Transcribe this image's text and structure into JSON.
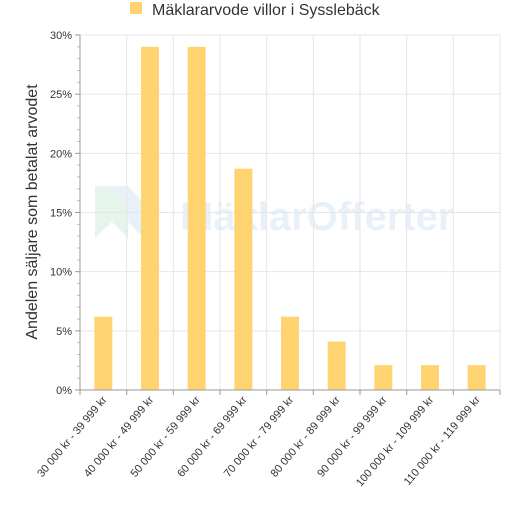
{
  "chart_data": {
    "type": "bar",
    "categories": [
      "30 000 kr - 39 999 kr",
      "40 000 kr - 49 999 kr",
      "50 000 kr - 59 999 kr",
      "60 000 kr - 69 999 kr",
      "70 000 kr - 79 999 kr",
      "80 000 kr - 89 999 kr",
      "90 000 kr - 99 999 kr",
      "100 000 kr - 109 999 kr",
      "110 000 kr - 119 999 kr"
    ],
    "series": [
      {
        "name": "Mäklararvode villor i Sysslebäck",
        "values": [
          6.2,
          29.0,
          29.0,
          18.7,
          6.2,
          4.1,
          2.1,
          2.1,
          2.1
        ]
      }
    ],
    "ylabel": "Andelen säljare som betalat arvodet",
    "xlabel": "",
    "ylim": [
      0,
      30
    ],
    "yticks": [
      "0%",
      "5%",
      "10%",
      "15%",
      "20%",
      "25%",
      "30%"
    ],
    "grid": true,
    "legend_position": "top-center",
    "bar_color": "#ffd470",
    "watermark": "MäklarOfferter"
  }
}
